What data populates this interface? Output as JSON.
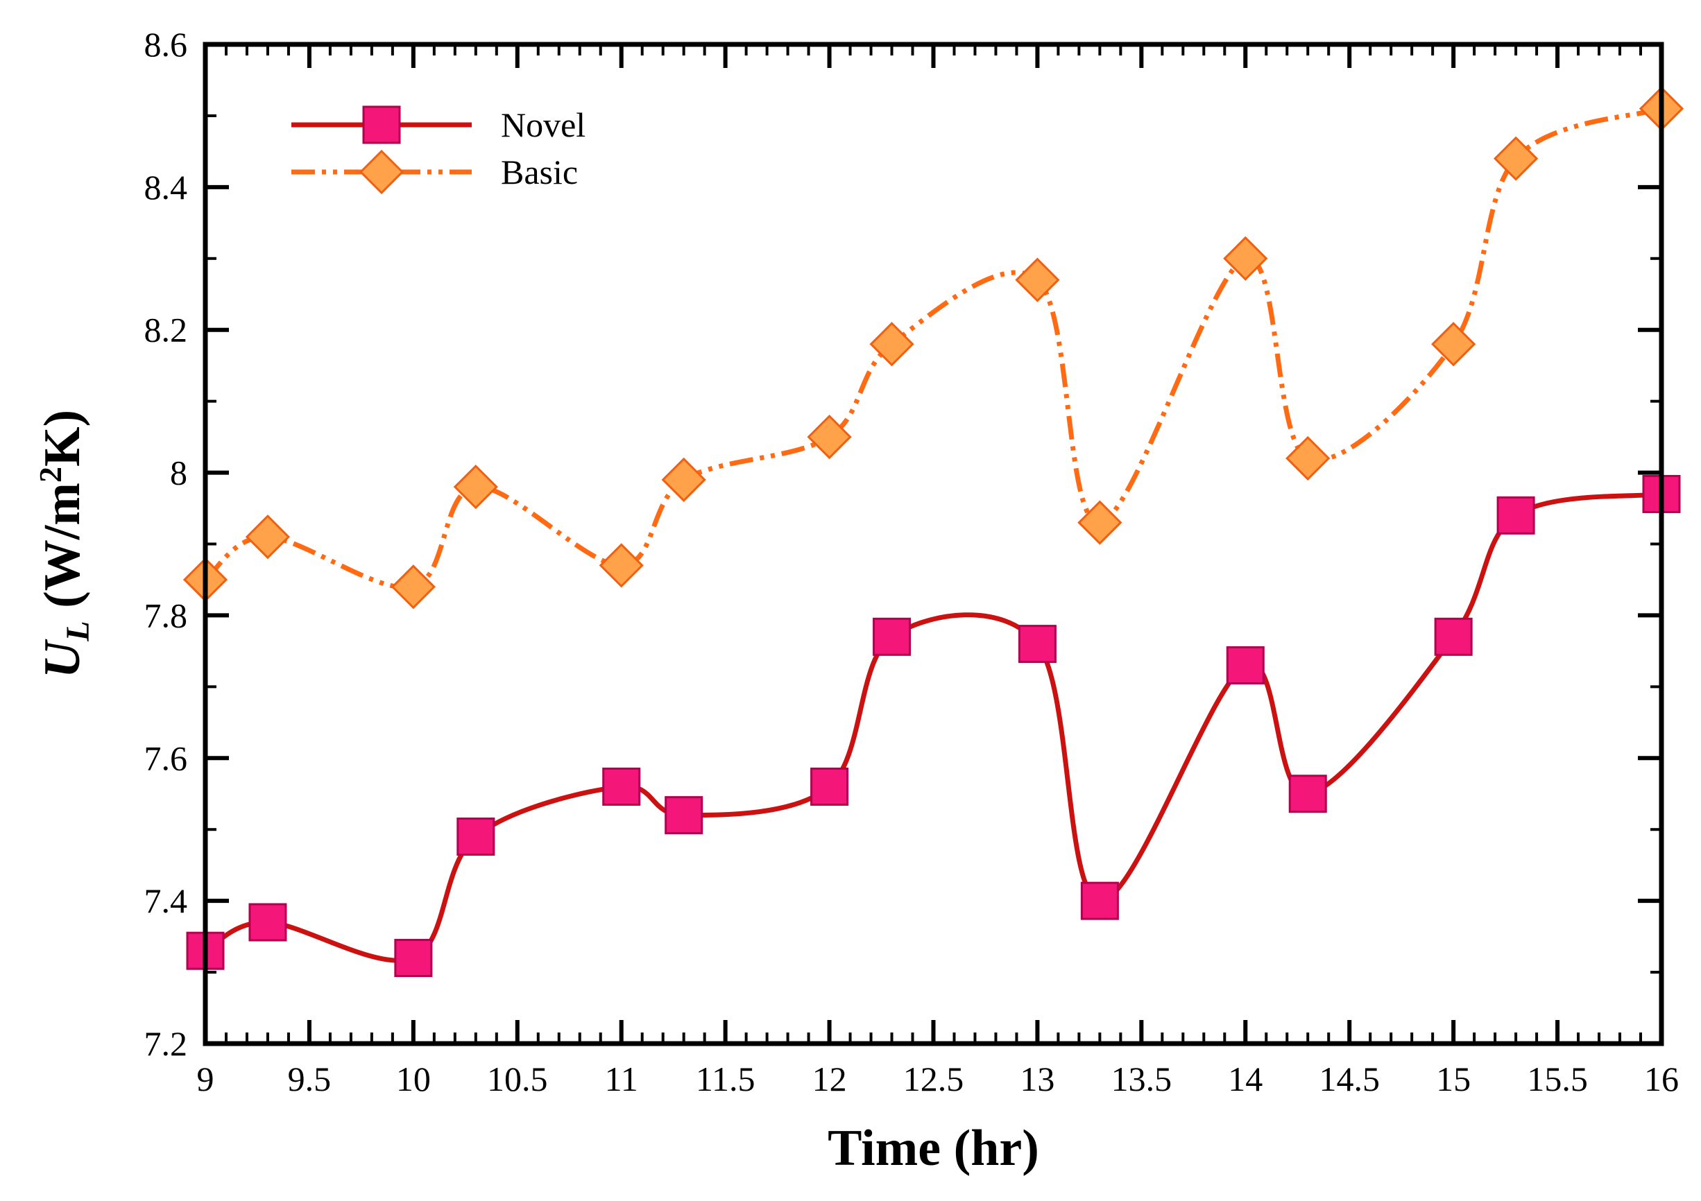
{
  "chart_data": {
    "type": "line",
    "title": "",
    "xlabel": "Time (hr)",
    "ylabel_main": "U",
    "ylabel_sub": "L",
    "ylabel_units_pre": " (W/m",
    "ylabel_units_sup": "2",
    "ylabel_units_post": "K)",
    "xlim": [
      9,
      16
    ],
    "ylim": [
      7.2,
      8.6
    ],
    "x_ticks": [
      9,
      9.5,
      10,
      10.5,
      11,
      11.5,
      12,
      12.5,
      13,
      13.5,
      14,
      14.5,
      15,
      15.5,
      16
    ],
    "x_tick_labels": [
      "9",
      "9.5",
      "10",
      "10.5",
      "11",
      "11.5",
      "12",
      "12.5",
      "13",
      "13.5",
      "14",
      "14.5",
      "15",
      "15.5",
      "16"
    ],
    "y_ticks": [
      7.2,
      7.4,
      7.6,
      7.8,
      8,
      8.2,
      8.4,
      8.6
    ],
    "y_tick_labels": [
      "7.2",
      "7.4",
      "7.6",
      "7.8",
      "8",
      "8.2",
      "8.4",
      "8.6"
    ],
    "x_minor_step": 0.1,
    "y_minor_step": 0.1,
    "grid": false,
    "legend_position": "top-left",
    "series": [
      {
        "name": "Novel",
        "marker": "square",
        "line_style": "solid",
        "line_color": "#cc1111",
        "marker_fill": "#f5167a",
        "marker_stroke": "#b3004f",
        "x": [
          9,
          9.3,
          10,
          10.3,
          11,
          11.3,
          12,
          12.3,
          13,
          13.3,
          14,
          14.3,
          15,
          15.3,
          16
        ],
        "values": [
          7.33,
          7.37,
          7.32,
          7.49,
          7.56,
          7.52,
          7.56,
          7.77,
          7.76,
          7.4,
          7.73,
          7.55,
          7.77,
          7.94,
          7.97
        ]
      },
      {
        "name": "Basic",
        "marker": "diamond",
        "line_style": "dash-dot-dot",
        "line_color": "#ff6a13",
        "marker_fill": "#ffa24a",
        "marker_stroke": "#f06010",
        "x": [
          9,
          9.3,
          10,
          10.3,
          11,
          11.3,
          12,
          12.3,
          13,
          13.3,
          14,
          14.3,
          15,
          15.3,
          16
        ],
        "values": [
          7.85,
          7.91,
          7.84,
          7.98,
          7.87,
          7.99,
          8.05,
          8.18,
          8.27,
          7.93,
          8.3,
          8.02,
          8.18,
          8.44,
          8.51
        ]
      }
    ]
  }
}
